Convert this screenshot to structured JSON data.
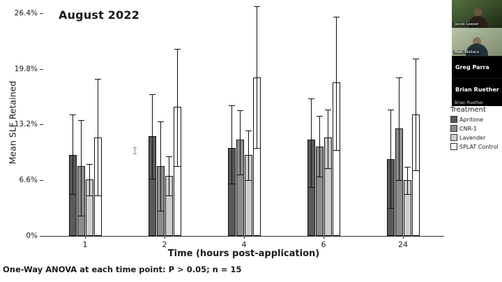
{
  "chart_data": {
    "type": "bar",
    "title": "August 2022",
    "xlabel": "Time (hours post-application)",
    "ylabel": "Mean SLF Retained",
    "note": "One-Way ANOVA at each time point: P > 0.05; n = 15",
    "categories": [
      "1",
      "2",
      "4",
      "6",
      "24"
    ],
    "ytick_labels": [
      "0%",
      "6.6%",
      "13.2%",
      "19.8%",
      "26.4%"
    ],
    "ytick_values": [
      0,
      6.6,
      13.2,
      19.8,
      26.4
    ],
    "ylim": [
      0,
      27.3
    ],
    "grid": false,
    "legend_title": "Treatment",
    "legend_position": "right",
    "series": [
      {
        "name": "Apritone",
        "color": "#595959",
        "values": [
          9.6,
          11.8,
          10.4,
          11.4,
          9.1
        ],
        "err_low": [
          5.0,
          6.8,
          6.2,
          5.8,
          3.3
        ],
        "err_high": [
          14.4,
          16.8,
          15.5,
          16.3,
          15.0
        ]
      },
      {
        "name": "CNR-1",
        "color": "#8c8c8c",
        "values": [
          8.3,
          8.3,
          11.4,
          10.6,
          12.7
        ],
        "err_low": [
          2.4,
          3.0,
          7.3,
          7.0,
          6.6
        ],
        "err_high": [
          13.7,
          13.6,
          14.9,
          14.2,
          18.8
        ]
      },
      {
        "name": "Lavender",
        "color": "#cdcdcd",
        "values": [
          6.7,
          7.1,
          9.6,
          11.7,
          6.6
        ],
        "err_low": [
          4.8,
          4.8,
          6.6,
          8.0,
          5.0
        ],
        "err_high": [
          8.5,
          9.4,
          12.5,
          15.0,
          8.2
        ]
      },
      {
        "name": "SPLAT Control",
        "color": "#ffffff",
        "values": [
          11.7,
          15.3,
          18.8,
          18.2,
          14.4
        ],
        "err_low": [
          4.8,
          8.3,
          10.4,
          10.2,
          7.8
        ],
        "err_high": [
          18.6,
          22.2,
          27.2,
          26.0,
          21.0
        ]
      }
    ]
  },
  "sidebar": {
    "participants": [
      {
        "name": "Jacob Leeser",
        "type": "video"
      },
      {
        "name": "Matt Wallace",
        "type": "video"
      },
      {
        "name": "Greg Parra",
        "type": "name"
      },
      {
        "name": "Brian Ruether",
        "type": "name"
      }
    ],
    "active_speaker": "Brian Ruether"
  }
}
